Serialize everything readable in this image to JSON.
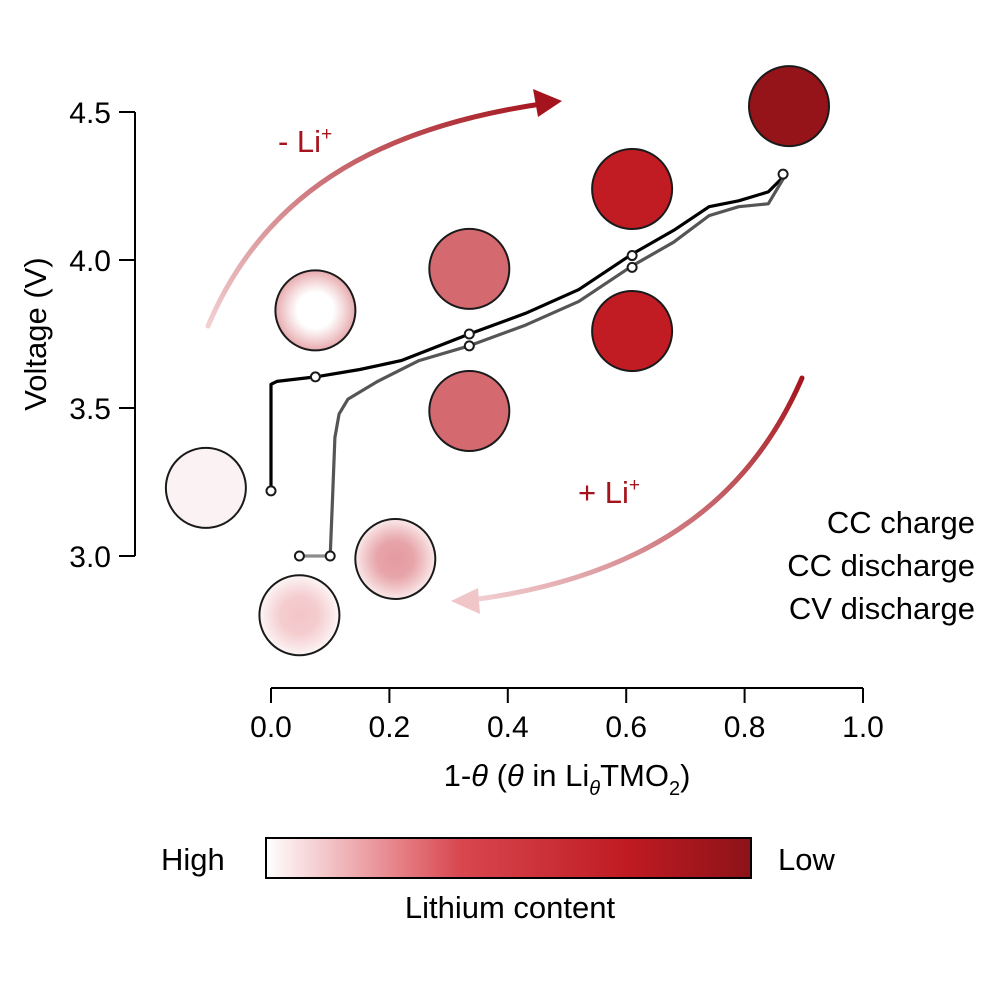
{
  "chart_data": {
    "type": "line",
    "xlabel_parts": {
      "pre": "1-",
      "theta1": "θ",
      "mid": " (",
      "theta2": "θ",
      "in": " in Li",
      "sub_theta": "θ",
      "tm": "TMO",
      "sub_2": "2",
      "close": ")"
    },
    "ylabel": "Voltage (V)",
    "xlim": [
      0.0,
      1.0
    ],
    "ylim": [
      2.6,
      4.6
    ],
    "x_ticks": [
      "0.0",
      "0.2",
      "0.4",
      "0.6",
      "0.8",
      "1.0"
    ],
    "y_ticks": [
      "3.0",
      "3.5",
      "4.0",
      "4.5"
    ],
    "legend": {
      "position": "right",
      "entries": [
        {
          "label": "CC charge",
          "color": "#000000"
        },
        {
          "label": "CC discharge",
          "color": "#555555"
        },
        {
          "label": "CV discharge",
          "color": "#8c8c8c"
        }
      ]
    },
    "series": [
      {
        "name": "CC charge",
        "color": "#000000",
        "points": [
          [
            0.0,
            3.22
          ],
          [
            0.0,
            3.58
          ],
          [
            0.01,
            3.59
          ],
          [
            0.075,
            3.605
          ],
          [
            0.15,
            3.63
          ],
          [
            0.22,
            3.66
          ],
          [
            0.335,
            3.75
          ],
          [
            0.43,
            3.82
          ],
          [
            0.52,
            3.9
          ],
          [
            0.61,
            4.02
          ],
          [
            0.68,
            4.1
          ],
          [
            0.74,
            4.18
          ],
          [
            0.79,
            4.2
          ],
          [
            0.84,
            4.23
          ],
          [
            0.87,
            4.29
          ]
        ]
      },
      {
        "name": "CC discharge",
        "color": "#555555",
        "points": [
          [
            0.87,
            4.29
          ],
          [
            0.84,
            4.19
          ],
          [
            0.79,
            4.18
          ],
          [
            0.74,
            4.15
          ],
          [
            0.68,
            4.06
          ],
          [
            0.61,
            3.98
          ],
          [
            0.52,
            3.86
          ],
          [
            0.43,
            3.78
          ],
          [
            0.335,
            3.71
          ],
          [
            0.25,
            3.66
          ],
          [
            0.18,
            3.59
          ],
          [
            0.13,
            3.53
          ],
          [
            0.115,
            3.48
          ],
          [
            0.108,
            3.4
          ],
          [
            0.104,
            3.2
          ],
          [
            0.1,
            3.0
          ]
        ]
      },
      {
        "name": "CV discharge",
        "color": "#8c8c8c",
        "points": [
          [
            0.1,
            3.0
          ],
          [
            0.048,
            3.0
          ]
        ]
      }
    ],
    "markers": [
      [
        0.0,
        3.22
      ],
      [
        0.075,
        3.605
      ],
      [
        0.335,
        3.75
      ],
      [
        0.335,
        3.71
      ],
      [
        0.61,
        4.015
      ],
      [
        0.61,
        3.975
      ],
      [
        0.865,
        4.29
      ],
      [
        0.1,
        3.0
      ],
      [
        0.048,
        3.0
      ]
    ],
    "particles": [
      {
        "x": -0.11,
        "y": 3.23,
        "color": "#fbf3f3",
        "center": "#fbf3f3"
      },
      {
        "x": 0.075,
        "y": 3.83,
        "color": "#e7a9ad",
        "center": "#ffffff"
      },
      {
        "x": 0.335,
        "y": 3.97,
        "color": "#d46a70",
        "center": "#d46a70"
      },
      {
        "x": 0.335,
        "y": 3.49,
        "color": "#d46a70",
        "center": "#d46a70"
      },
      {
        "x": 0.61,
        "y": 4.24,
        "color": "#c11c24",
        "center": "#c11c24"
      },
      {
        "x": 0.61,
        "y": 3.76,
        "color": "#c11c24",
        "center": "#c11c24"
      },
      {
        "x": 0.875,
        "y": 4.52,
        "color": "#951419",
        "center": "#951419"
      },
      {
        "x": 0.21,
        "y": 2.99,
        "color": "#fbeaea",
        "center": "#e49aa0"
      },
      {
        "x": 0.048,
        "y": 2.8,
        "color": "#fdf6f6",
        "center": "#f3c6c9"
      }
    ],
    "annotations": {
      "remove_li": "- Li",
      "add_li": "+ Li",
      "plus_sup": "+"
    },
    "colorbar": {
      "label": "Lithium content",
      "left_label": "High",
      "right_label": "Low",
      "stops": [
        "#ffffff",
        "#d9474f",
        "#bf1a22",
        "#8c1318"
      ]
    }
  }
}
